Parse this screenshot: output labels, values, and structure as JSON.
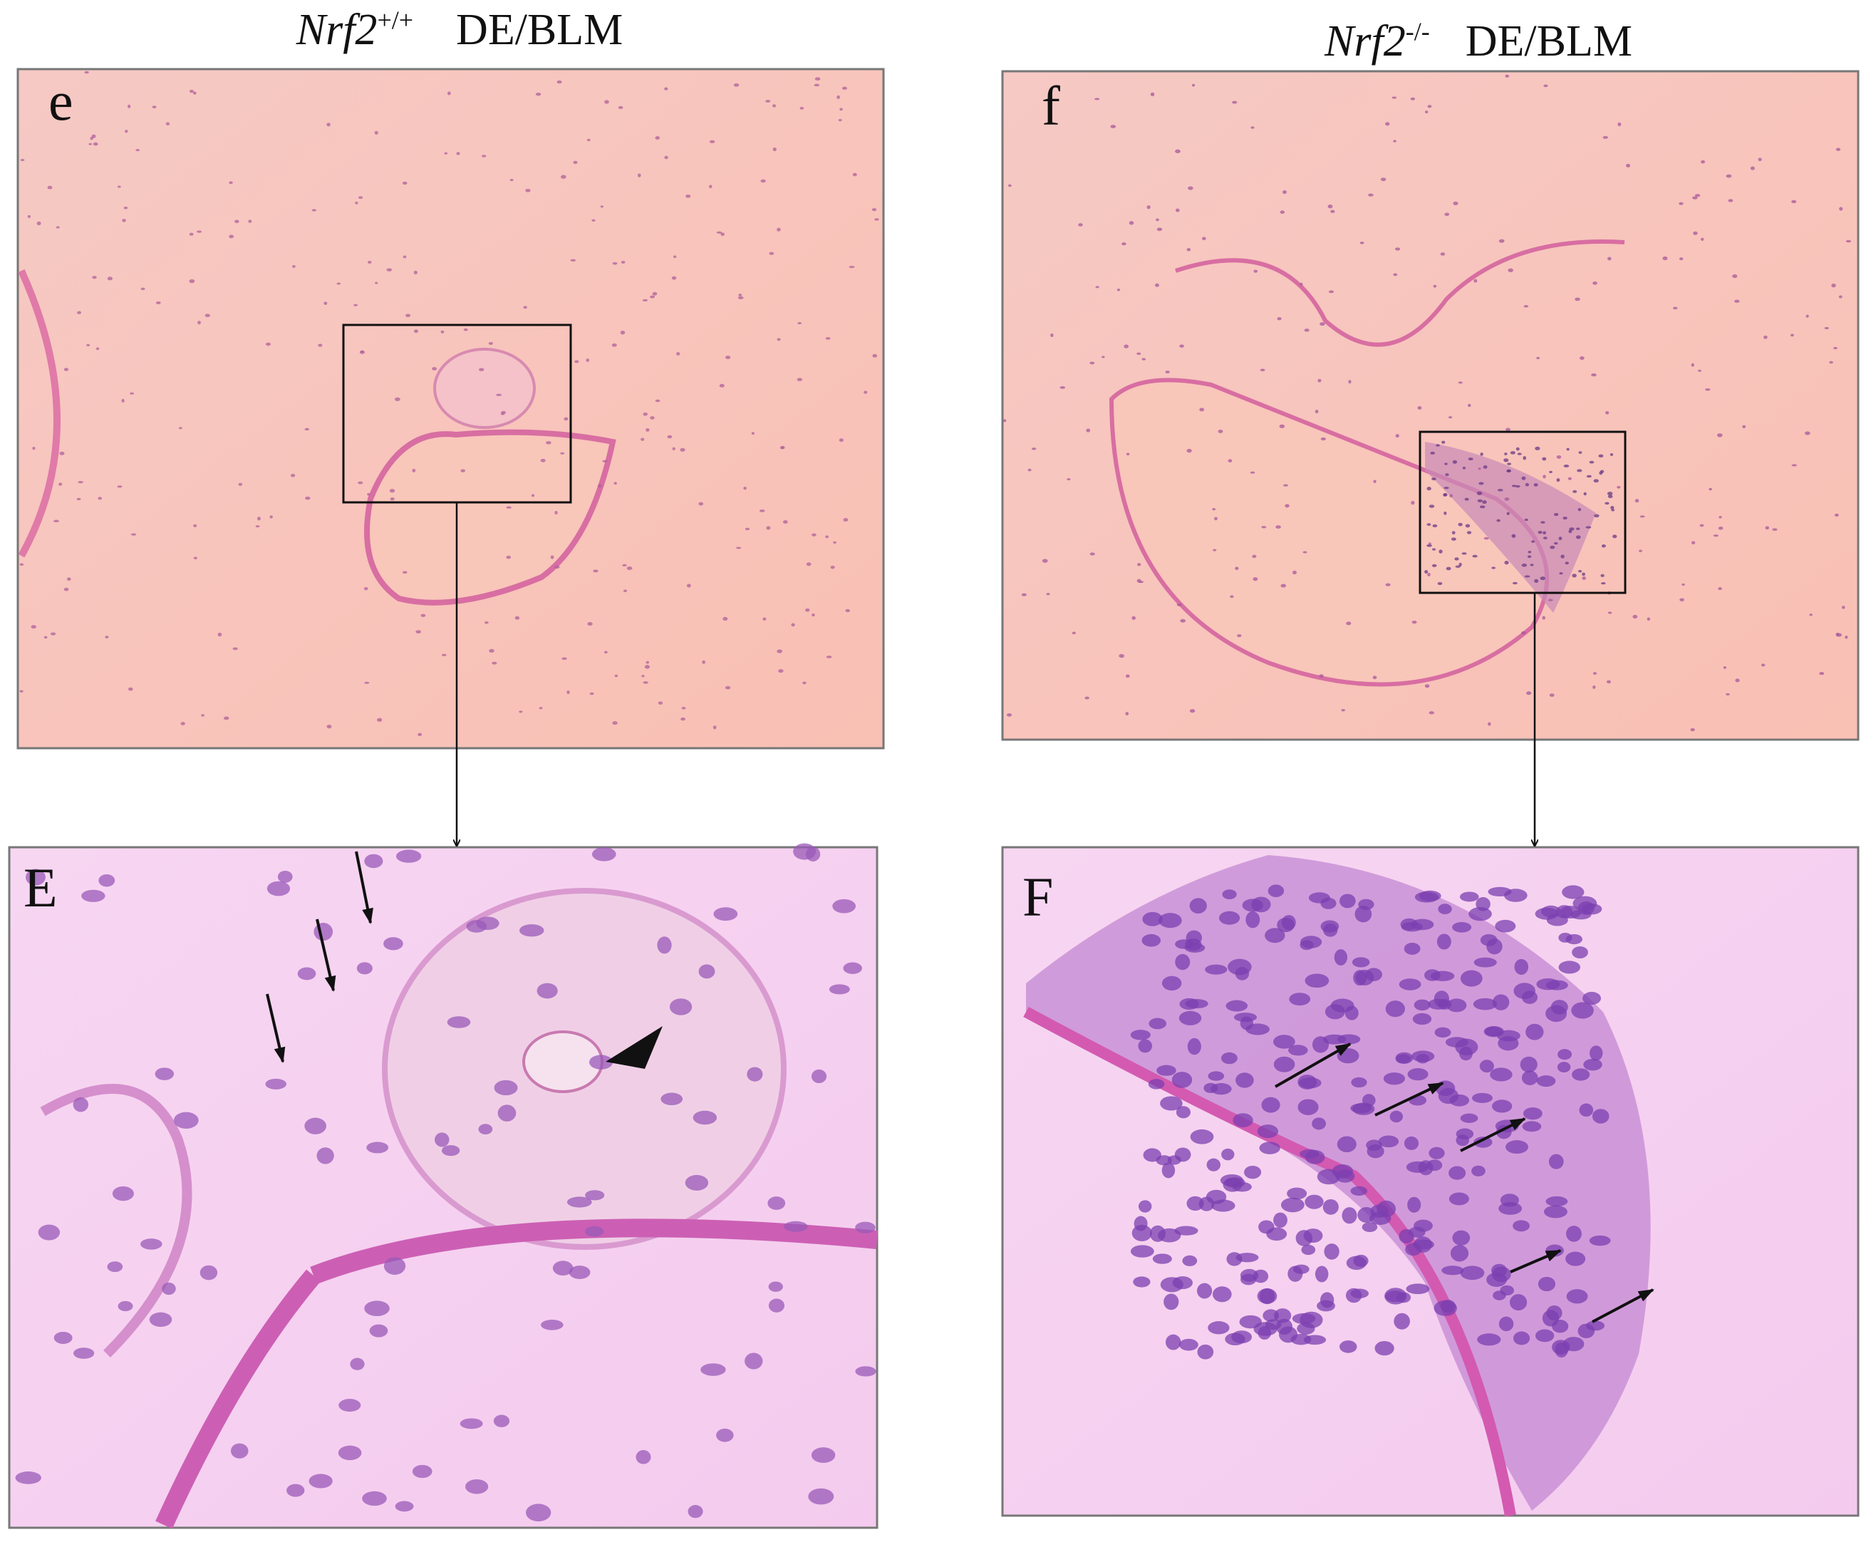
{
  "panels": [
    {
      "label": "e",
      "gene": "Nrf2",
      "genotype": "+/+",
      "condition": "DE/BLM"
    },
    {
      "label": "f",
      "gene": "Nrf2",
      "genotype": "-/-",
      "condition": "DE/BLM"
    },
    {
      "label": "E"
    },
    {
      "label": "F"
    }
  ]
}
